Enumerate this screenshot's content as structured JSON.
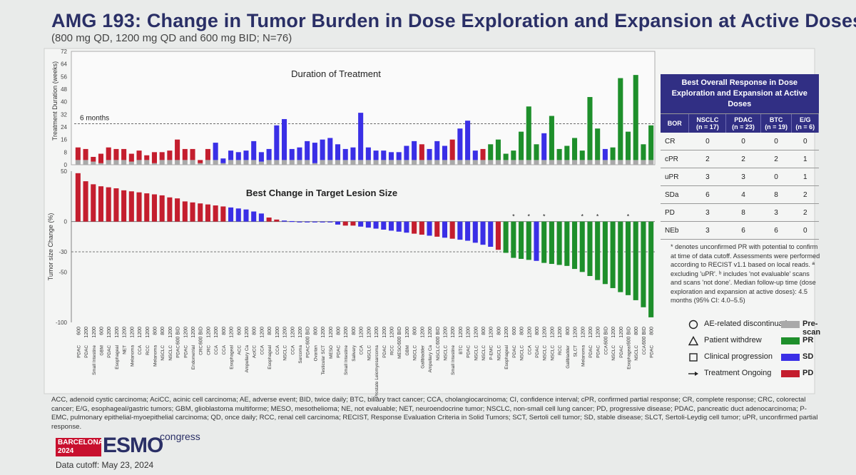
{
  "title": "AMG 193: Change in Tumor Burden in Dose Exploration and Expansion at Active Doses",
  "subtitle": "(800 mg QD, 1200 mg QD and 600 mg BID; N=76)",
  "colors": {
    "pr": "#1e8f2b",
    "sd": "#3a2fe6",
    "pd": "#c41e2e",
    "prescan": "#a9a9a9",
    "title": "#2a2f66",
    "table_head": "#312f84"
  },
  "chart_data": [
    {
      "type": "bar",
      "title": "Duration of Treatment",
      "ylabel": "Treatment Duration (weeks)",
      "yticks": [
        0,
        8,
        16,
        24,
        32,
        40,
        48,
        56,
        64,
        72
      ],
      "ylim": [
        0,
        72
      ],
      "reference_line": {
        "value": 26,
        "label": "6 months"
      },
      "prescan": [
        3,
        3,
        2,
        1,
        3,
        3,
        3,
        2,
        3,
        3,
        1,
        3,
        3,
        3,
        3,
        3,
        1,
        3,
        3,
        1,
        3,
        3,
        3,
        3,
        2,
        3,
        3,
        3,
        3,
        3,
        3,
        1,
        3,
        3,
        3,
        3,
        3,
        3,
        3,
        3,
        3,
        3,
        3,
        3,
        3,
        3,
        3,
        3,
        3,
        3,
        3,
        3,
        3,
        3,
        3,
        3,
        3,
        3,
        3,
        3,
        3,
        3,
        3,
        3,
        3,
        3,
        3,
        3,
        3,
        3,
        3,
        3,
        3,
        3,
        3,
        3
      ],
      "series_order": "bars sorted by best change (left = largest increase)",
      "values": [
        8,
        7,
        3,
        6,
        8,
        7,
        7,
        5,
        6,
        3,
        7,
        5,
        6,
        13,
        7,
        7,
        2,
        7,
        11,
        3,
        6,
        5,
        6,
        12,
        6,
        7,
        22,
        26,
        7,
        8,
        12,
        13,
        13,
        14,
        10,
        7,
        8,
        30,
        8,
        6,
        6,
        5,
        5,
        9,
        12,
        10,
        7,
        12,
        9,
        13,
        20,
        25,
        6,
        7,
        10,
        13,
        4,
        6,
        18,
        34,
        10,
        17,
        28,
        7,
        9,
        14,
        6,
        40,
        20,
        7,
        8,
        52,
        18,
        54,
        10,
        22
      ],
      "colors": [
        "pd",
        "pd",
        "pd",
        "pd",
        "pd",
        "pd",
        "pd",
        "pd",
        "pd",
        "pd",
        "pd",
        "pd",
        "pd",
        "pd",
        "pd",
        "pd",
        "pd",
        "pd",
        "sd",
        "sd",
        "sd",
        "sd",
        "sd",
        "sd",
        "sd",
        "sd",
        "sd",
        "sd",
        "sd",
        "sd",
        "sd",
        "sd",
        "sd",
        "sd",
        "sd",
        "sd",
        "sd",
        "sd",
        "sd",
        "sd",
        "sd",
        "sd",
        "sd",
        "sd",
        "sd",
        "pd",
        "sd",
        "sd",
        "sd",
        "pd",
        "sd",
        "sd",
        "sd",
        "pd",
        "pr",
        "pr",
        "pr",
        "pr",
        "pr",
        "pr",
        "pr",
        "sd",
        "pr",
        "pr",
        "pr",
        "pr",
        "pr",
        "pr",
        "pr",
        "sd",
        "pr",
        "pr",
        "pr",
        "pr",
        "pr",
        "pr"
      ]
    },
    {
      "type": "bar",
      "title": "Best Change in Target Lesion Size",
      "ylabel": "Tumor size Change (%)",
      "yticks": [
        50,
        0,
        -30,
        -50,
        -100
      ],
      "ylim": [
        -100,
        50
      ],
      "reference_line": {
        "value": -30
      },
      "values": [
        48,
        40,
        37,
        35,
        34,
        33,
        31,
        30,
        29,
        28,
        27,
        26,
        24,
        23,
        20,
        19,
        18,
        17,
        16,
        15,
        14,
        13,
        12,
        10,
        8,
        4,
        2,
        1,
        0.5,
        0,
        0,
        0,
        0,
        0,
        -3,
        -4,
        -4,
        -5,
        -6,
        -7,
        -8,
        -9,
        -10,
        -11,
        -12,
        -13,
        -14,
        -15,
        -16,
        -17,
        -18,
        -19,
        -21,
        -23,
        -25,
        -28,
        -31,
        -36,
        -37,
        -38,
        -39,
        -41,
        -42,
        -43,
        -44,
        -47,
        -50,
        -54,
        -58,
        -62,
        -66,
        -70,
        -73,
        -78,
        -85,
        -95
      ],
      "colors": [
        "pd",
        "pd",
        "pd",
        "pd",
        "pd",
        "pd",
        "pd",
        "pd",
        "pd",
        "pd",
        "pd",
        "pd",
        "pd",
        "pd",
        "pd",
        "pd",
        "pd",
        "pd",
        "pd",
        "pd",
        "sd",
        "sd",
        "sd",
        "sd",
        "sd",
        "pd",
        "pd",
        "sd",
        "sd",
        "sd",
        "sd",
        "sd",
        "sd",
        "sd",
        "sd",
        "pd",
        "pd",
        "sd",
        "sd",
        "sd",
        "sd",
        "sd",
        "sd",
        "sd",
        "pd",
        "pd",
        "sd",
        "pd",
        "sd",
        "pd",
        "sd",
        "sd",
        "sd",
        "sd",
        "sd",
        "pd",
        "pr",
        "pr",
        "pr",
        "pr",
        "sd",
        "pr",
        "pr",
        "pr",
        "pr",
        "pr",
        "pr",
        "pr",
        "pr",
        "pr",
        "pr",
        "pr",
        "pr",
        "pr",
        "pr",
        "pr"
      ],
      "asterisk_bars": [
        57,
        59,
        61,
        66,
        68,
        72
      ],
      "tumor_types": [
        "PDAC",
        "PDAC",
        "Small Intestine",
        "GBM",
        "PDAC",
        "Esophageal",
        "NET",
        "Melanoma",
        "CCA",
        "RCC",
        "Melanoma",
        "NSCLC",
        "NSCLC",
        "PDAC",
        "PDAC",
        "Endometrial",
        "CRC",
        "CRC",
        "CCA",
        "CCA",
        "Esophageal",
        "ACC",
        "Ampullary Ca",
        "AciCC",
        "CCA",
        "Esophageal",
        "CCA",
        "NSCLC",
        "CCA",
        "Sarcoma",
        "PDAC",
        "Ovarian",
        "Testicular SCT",
        "MESO",
        "PDAC",
        "Small Intestine",
        "Salivary",
        "CCA",
        "NSCLC",
        "Prostate Leiomyosarcoma",
        "PDAC",
        "RCC",
        "MESO",
        "GBM",
        "NSCLC",
        "Gallbladder",
        "Ampullary Ca",
        "NSCLC",
        "NSCLC",
        "Small Intestine",
        "BTC",
        "PDAC",
        "NSCLC",
        "NSCLC",
        "P-EMC",
        "NSCLC",
        "Esophageal",
        "PDAC",
        "NSCLC",
        "CCA",
        "PDAC",
        "NSCLC",
        "NSCLC",
        "RCC",
        "Gallbladder",
        "SLCT",
        "Melanoma",
        "PDAC",
        "PDAC",
        "CCA",
        "NSCLC",
        "PDAC",
        "Esophageal",
        "NSCLC",
        "CCA",
        "PDAC"
      ],
      "doses": [
        "600",
        "1200",
        "1200",
        "600",
        "1200",
        "1200",
        "1200",
        "1200",
        "1200",
        "1200",
        "800",
        "800",
        "1200",
        "600 BID",
        "1200",
        "1200",
        "600 BID",
        "1200",
        "1200",
        "800",
        "1200",
        "600",
        "1200",
        "800",
        "1200",
        "800",
        "1200",
        "1200",
        "1200",
        "1200",
        "600 BID",
        "800",
        "1200",
        "1200",
        "800",
        "1200",
        "800",
        "1200",
        "1200",
        "1200",
        "1200",
        "1200",
        "600 BID",
        "1200",
        "800",
        "1200",
        "1200",
        "600 BID",
        "1200",
        "1200",
        "1200",
        "1200",
        "1200",
        "800",
        "1200",
        "800",
        "1200",
        "600",
        "800",
        "1200",
        "800",
        "1200",
        "1200",
        "1200",
        "800",
        "1200",
        "1200",
        "1200",
        "1200",
        "600 BID",
        "1200",
        "1200",
        "600 BID",
        "800",
        "600 BID",
        "800"
      ]
    }
  ],
  "bor_table": {
    "heading": "Best Overall Response in Dose Exploration and Expansion at Active Doses",
    "columns": [
      {
        "name": "BOR",
        "n": ""
      },
      {
        "name": "NSCLC",
        "n": "(n = 17)"
      },
      {
        "name": "PDAC",
        "n": "(n = 23)"
      },
      {
        "name": "BTC",
        "n": "(n = 19)"
      },
      {
        "name": "E/G",
        "n": "(n = 6)"
      }
    ],
    "rows": [
      [
        "CR",
        "0",
        "0",
        "0",
        "0"
      ],
      [
        "cPR",
        "2",
        "2",
        "2",
        "1"
      ],
      [
        "uPR",
        "3",
        "3",
        "0",
        "1"
      ],
      [
        "SDa",
        "6",
        "4",
        "8",
        "2"
      ],
      [
        "PD",
        "3",
        "8",
        "3",
        "2"
      ],
      [
        "NEb",
        "3",
        "6",
        "6",
        "0"
      ]
    ]
  },
  "footnote": "* denotes unconfirmed PR with potential to confirm at time of data cutoff. Assessments were performed according to RECIST v1.1 based on local reads. ª excluding 'uPR'. ᵇ includes 'not evaluable' scans and scans 'not done'. Median follow-up time (dose exploration and expansion at active doses): 4.5 months (95% CI: 4.0–5.5)",
  "legend": {
    "ae": "AE-related discontinuation",
    "withdrew": "Patient withdrew",
    "progression": "Clinical progression",
    "ongoing": "Treatment Ongoing",
    "prescan": "Pre-scan",
    "pr": "PR",
    "sd": "SD",
    "pd": "PD"
  },
  "abbreviations": "ACC, adenoid cystic carcinoma; AciCC, acinic cell carcinoma; AE, adverse event; BID, twice daily; BTC, biliary tract cancer; CCA, cholangiocarcinoma; CI, confidence interval; cPR, confirmed partial response; CR, complete response; CRC, colorectal cancer; E/G, esophageal/gastric tumors; GBM, glioblastoma multiforme; MESO, mesothelioma; NE, not evaluable; NET, neuroendocrine tumor; NSCLC, non-small cell lung cancer; PD, progressive disease; PDAC, pancreatic duct adenocarcinoma; P-EMC, pulmonary epithelial-myoepithelial carcinoma; QD, once daily; RCC, renal cell carcinoma; RECIST, Response Evaluation Criteria in Solid Tumors; SCT, Sertoli cell tumor; SD, stable disease; SLCT, Sertoli-Leydig cell tumor; uPR, unconfirmed partial response.",
  "esmo": {
    "city": "BARCELONA",
    "year": "2024",
    "word": "ESMO",
    "congress": "congress"
  },
  "cutoff": "Data cutoff: May 23, 2024"
}
